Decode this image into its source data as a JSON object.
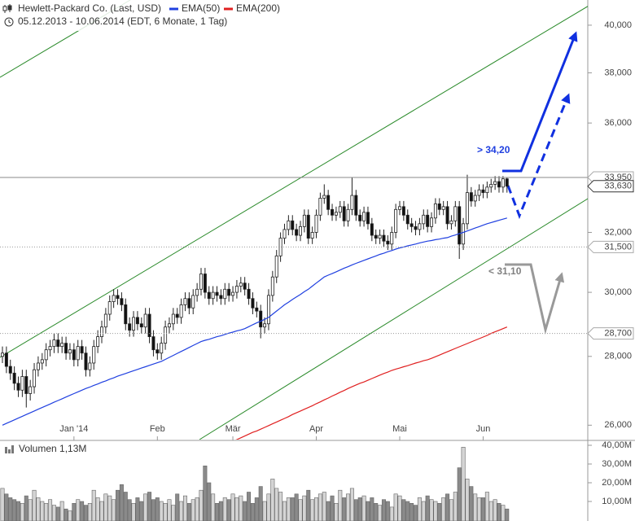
{
  "header": {
    "title": "Hewlett-Packard Co. (Last, USD)",
    "subtitle": "05.12.2013 - 10.06.2014 (EDT, 6 Monate, 1 Tag)"
  },
  "chart_data": [
    {
      "type": "candlestick",
      "categories": [
        null,
        null,
        null,
        null,
        null,
        null,
        null,
        null,
        null,
        null,
        null,
        null,
        null,
        null,
        null,
        null,
        null,
        null,
        "Jan '14",
        null,
        null,
        null,
        null,
        null,
        null,
        null,
        null,
        null,
        null,
        null,
        null,
        null,
        null,
        null,
        null,
        null,
        null,
        null,
        null,
        "Feb",
        null,
        null,
        null,
        null,
        null,
        null,
        null,
        null,
        null,
        null,
        null,
        null,
        null,
        null,
        null,
        null,
        null,
        null,
        "Mär",
        null,
        null,
        null,
        null,
        null,
        null,
        null,
        null,
        null,
        null,
        null,
        null,
        null,
        null,
        null,
        null,
        null,
        null,
        null,
        null,
        "Apr",
        null,
        null,
        null,
        null,
        null,
        null,
        null,
        null,
        null,
        null,
        null,
        null,
        null,
        null,
        null,
        null,
        null,
        null,
        null,
        null,
        "Mai",
        null,
        null,
        null,
        null,
        null,
        null,
        null,
        null,
        null,
        null,
        null,
        null,
        null,
        null,
        null,
        null,
        null,
        null,
        null,
        null,
        "Jun",
        null,
        null,
        null,
        null,
        null,
        null
      ],
      "open": [
        28.0,
        28.1,
        27.7,
        27.5,
        27.2,
        27.0,
        27.4,
        26.9,
        27.1,
        27.6,
        27.8,
        27.9,
        28.2,
        28.3,
        28.5,
        28.3,
        28.4,
        28.1,
        28.2,
        27.9,
        28.3,
        28.1,
        27.6,
        27.8,
        28.3,
        28.6,
        28.9,
        29.3,
        29.7,
        29.9,
        29.8,
        29.6,
        29.0,
        28.8,
        29.2,
        29.0,
        28.9,
        29.3,
        28.6,
        28.2,
        28.1,
        28.4,
        28.9,
        29.0,
        29.3,
        29.2,
        29.6,
        29.8,
        29.5,
        29.9,
        30.1,
        30.6,
        30.0,
        29.8,
        30.0,
        29.9,
        29.8,
        30.1,
        29.9,
        30.0,
        30.2,
        30.3,
        30.1,
        29.8,
        29.5,
        29.4,
        28.9,
        29.0,
        29.9,
        30.5,
        31.2,
        31.8,
        32.1,
        32.4,
        32.1,
        31.9,
        32.2,
        32.6,
        31.8,
        32.0,
        32.6,
        33.2,
        33.3,
        32.8,
        32.6,
        32.7,
        32.9,
        32.4,
        32.8,
        33.3,
        32.6,
        32.4,
        32.7,
        32.3,
        31.9,
        31.8,
        31.9,
        31.7,
        31.6,
        32.0,
        32.8,
        32.9,
        32.6,
        32.3,
        32.2,
        32.1,
        32.3,
        32.6,
        32.2,
        32.5,
        33.0,
        32.8,
        32.9,
        32.3,
        32.4,
        32.9,
        31.6,
        32.3,
        33.4,
        33.1,
        33.3,
        33.5,
        33.4,
        33.6,
        33.7,
        33.8,
        33.6,
        33.9
      ],
      "high": [
        28.3,
        28.3,
        27.9,
        27.7,
        27.4,
        27.6,
        27.6,
        27.3,
        27.8,
        28.0,
        28.1,
        28.4,
        28.5,
        28.7,
        28.7,
        28.6,
        28.6,
        28.4,
        28.4,
        28.5,
        28.5,
        28.3,
        28.0,
        28.5,
        28.8,
        29.1,
        29.5,
        29.9,
        30.1,
        30.1,
        30.0,
        29.8,
        29.2,
        29.4,
        29.4,
        29.2,
        29.5,
        29.5,
        28.8,
        28.4,
        28.6,
        29.1,
        29.2,
        29.5,
        29.5,
        29.8,
        30.0,
        30.0,
        30.1,
        30.3,
        30.8,
        30.8,
        30.2,
        30.2,
        30.2,
        30.1,
        30.3,
        30.3,
        30.2,
        30.4,
        30.5,
        30.5,
        30.3,
        30.0,
        29.7,
        29.6,
        29.2,
        30.1,
        30.7,
        31.4,
        32.0,
        32.3,
        32.6,
        32.6,
        32.3,
        32.4,
        32.8,
        32.8,
        32.2,
        32.8,
        33.4,
        33.7,
        33.5,
        33.0,
        32.9,
        33.1,
        33.1,
        33.0,
        33.95,
        33.5,
        32.8,
        32.9,
        32.9,
        32.5,
        32.1,
        32.1,
        32.1,
        31.9,
        32.2,
        33.0,
        33.1,
        33.1,
        32.8,
        32.5,
        32.4,
        32.5,
        32.8,
        32.8,
        32.7,
        33.2,
        33.2,
        33.1,
        33.1,
        32.6,
        33.1,
        33.1,
        32.5,
        34.05,
        33.6,
        33.5,
        33.7,
        33.7,
        33.8,
        33.9,
        34.0,
        34.0,
        34.0,
        33.95
      ],
      "low": [
        27.8,
        27.5,
        27.3,
        27.0,
        26.8,
        26.8,
        26.5,
        26.7,
        26.9,
        27.4,
        27.6,
        27.7,
        28.0,
        28.1,
        28.1,
        28.1,
        27.9,
        27.9,
        27.7,
        27.7,
        27.9,
        27.4,
        27.4,
        27.6,
        28.1,
        28.4,
        28.7,
        29.1,
        29.5,
        29.6,
        29.4,
        28.8,
        28.6,
        28.6,
        28.8,
        28.7,
        28.7,
        28.4,
        28.0,
        27.9,
        27.9,
        28.2,
        28.7,
        28.8,
        29.0,
        29.0,
        29.4,
        29.3,
        29.3,
        29.7,
        29.9,
        29.8,
        29.6,
        29.6,
        29.7,
        29.6,
        29.6,
        29.7,
        29.7,
        29.8,
        30.0,
        29.9,
        29.6,
        29.3,
        29.2,
        28.55,
        28.7,
        28.8,
        29.7,
        30.3,
        31.0,
        31.6,
        31.9,
        31.9,
        31.7,
        31.7,
        32.0,
        31.6,
        31.6,
        31.8,
        32.4,
        33.0,
        32.6,
        32.4,
        32.4,
        32.5,
        32.2,
        32.2,
        32.6,
        32.4,
        32.2,
        32.2,
        32.1,
        31.7,
        31.6,
        31.6,
        31.5,
        31.4,
        31.4,
        31.8,
        32.6,
        32.4,
        32.1,
        32.0,
        31.9,
        31.9,
        32.1,
        32.0,
        32.0,
        32.3,
        32.6,
        32.6,
        32.1,
        32.1,
        32.2,
        31.1,
        31.4,
        32.1,
        32.9,
        32.9,
        33.1,
        33.2,
        33.2,
        33.4,
        33.5,
        33.4,
        33.4,
        33.4
      ],
      "close": [
        28.1,
        27.7,
        27.5,
        27.2,
        27.0,
        27.4,
        26.9,
        27.1,
        27.6,
        27.8,
        27.9,
        28.2,
        28.3,
        28.5,
        28.3,
        28.4,
        28.1,
        28.2,
        27.9,
        28.3,
        28.1,
        27.6,
        27.8,
        28.3,
        28.6,
        28.9,
        29.3,
        29.7,
        29.9,
        29.8,
        29.6,
        29.0,
        28.8,
        29.2,
        29.0,
        28.9,
        29.3,
        28.6,
        28.2,
        28.1,
        28.4,
        28.9,
        29.0,
        29.3,
        29.2,
        29.6,
        29.8,
        29.5,
        29.9,
        30.1,
        30.6,
        30.0,
        29.8,
        30.0,
        29.9,
        29.8,
        30.1,
        29.9,
        30.0,
        30.2,
        30.3,
        30.1,
        29.8,
        29.5,
        29.4,
        28.9,
        29.0,
        29.9,
        30.5,
        31.2,
        31.8,
        32.1,
        32.4,
        32.1,
        31.9,
        32.2,
        32.6,
        31.8,
        32.0,
        32.6,
        33.2,
        33.3,
        32.8,
        32.6,
        32.7,
        32.9,
        32.4,
        32.8,
        33.3,
        32.6,
        32.4,
        32.7,
        32.3,
        31.9,
        31.8,
        31.9,
        31.7,
        31.6,
        32.0,
        32.8,
        32.9,
        32.6,
        32.3,
        32.2,
        32.1,
        32.3,
        32.6,
        32.2,
        32.5,
        33.0,
        32.8,
        32.9,
        32.3,
        32.4,
        32.9,
        31.6,
        32.3,
        33.4,
        33.1,
        33.3,
        33.5,
        33.4,
        33.6,
        33.7,
        33.8,
        33.6,
        33.9,
        33.63
      ],
      "series": [
        {
          "name": "EMA(50)",
          "color": "#2040e0",
          "values": [
            26.0,
            26.05,
            26.1,
            26.15,
            26.2,
            26.25,
            26.3,
            26.35,
            26.4,
            26.45,
            26.5,
            26.55,
            26.6,
            26.65,
            26.7,
            26.75,
            26.8,
            26.85,
            26.9,
            26.95,
            27.0,
            27.05,
            27.09,
            27.14,
            27.18,
            27.23,
            27.27,
            27.32,
            27.36,
            27.41,
            27.45,
            27.49,
            27.53,
            27.57,
            27.61,
            27.65,
            27.69,
            27.73,
            27.77,
            27.81,
            27.85,
            27.91,
            27.97,
            28.03,
            28.09,
            28.15,
            28.21,
            28.27,
            28.33,
            28.39,
            28.45,
            28.49,
            28.52,
            28.56,
            28.6,
            28.63,
            28.67,
            28.71,
            28.74,
            28.78,
            28.81,
            28.85,
            28.91,
            28.97,
            29.03,
            29.08,
            29.14,
            29.2,
            29.3,
            29.4,
            29.5,
            29.6,
            29.68,
            29.77,
            29.85,
            29.93,
            30.02,
            30.1,
            30.2,
            30.3,
            30.4,
            30.5,
            30.56,
            30.61,
            30.67,
            30.73,
            30.79,
            30.84,
            30.9,
            30.95,
            31.0,
            31.05,
            31.1,
            31.15,
            31.2,
            31.25,
            31.29,
            31.34,
            31.38,
            31.43,
            31.47,
            31.5,
            31.54,
            31.57,
            31.6,
            31.64,
            31.67,
            31.7,
            31.72,
            31.75,
            31.77,
            31.8,
            31.82,
            31.87,
            31.91,
            31.96,
            32.0,
            32.05,
            32.1,
            32.15,
            32.2,
            32.25,
            32.3,
            32.34,
            32.38,
            32.42,
            32.46,
            32.5
          ]
        },
        {
          "name": "EMA(200)",
          "color": "#e02020",
          "values": [
            null,
            null,
            null,
            null,
            null,
            null,
            null,
            null,
            null,
            null,
            null,
            null,
            null,
            null,
            null,
            null,
            null,
            null,
            null,
            null,
            null,
            null,
            null,
            null,
            null,
            null,
            null,
            null,
            null,
            null,
            null,
            null,
            null,
            null,
            null,
            null,
            null,
            null,
            null,
            null,
            null,
            null,
            null,
            null,
            null,
            null,
            null,
            null,
            null,
            null,
            null,
            null,
            null,
            null,
            null,
            null,
            null,
            null,
            25.55,
            25.6,
            25.65,
            25.7,
            25.75,
            25.8,
            25.84,
            25.89,
            25.94,
            25.99,
            26.04,
            26.09,
            26.14,
            26.19,
            26.24,
            26.3,
            26.35,
            26.4,
            26.45,
            26.5,
            26.55,
            26.61,
            26.66,
            26.72,
            26.77,
            26.83,
            26.88,
            26.94,
            26.99,
            27.05,
            27.1,
            27.15,
            27.2,
            27.24,
            27.29,
            27.34,
            27.39,
            27.44,
            27.49,
            27.53,
            27.58,
            27.62,
            27.65,
            27.69,
            27.72,
            27.76,
            27.8,
            27.83,
            27.87,
            27.9,
            27.94,
            27.99,
            28.04,
            28.09,
            28.14,
            28.19,
            28.24,
            28.29,
            28.34,
            28.39,
            28.44,
            28.49,
            28.54,
            28.59,
            28.64,
            28.7,
            28.75,
            28.8,
            28.85,
            28.9
          ]
        }
      ],
      "ylim": [
        25.6,
        41.1
      ],
      "log_scale": true,
      "yticks": [
        {
          "value": 26,
          "label": "26,000"
        },
        {
          "value": 28,
          "label": "28,000"
        },
        {
          "value": 30,
          "label": "30,000"
        },
        {
          "value": 32,
          "label": "32,000"
        },
        {
          "value": 36,
          "label": "36,000"
        },
        {
          "value": 38,
          "label": "38,000"
        },
        {
          "value": 40,
          "label": "40,000"
        }
      ],
      "levels": [
        {
          "value": 33.95,
          "label": "33,950",
          "line": "solid"
        },
        {
          "value": 33.63,
          "label": "33,630",
          "line": "none"
        },
        {
          "value": 31.5,
          "label": "31,500",
          "line": "dotted"
        },
        {
          "value": 28.7,
          "label": "28,700",
          "line": "dotted"
        }
      ],
      "annotations": [
        {
          "text": "> 34,20",
          "color": "#2040e0"
        },
        {
          "text": "< 31,10",
          "color": "#808080"
        }
      ]
    },
    {
      "type": "bar",
      "title": "Volumen  1,13M",
      "values": [
        17,
        14,
        12,
        11,
        10,
        9,
        13,
        11,
        16,
        12,
        10,
        9,
        11,
        8,
        7,
        10,
        6,
        5,
        9,
        11,
        10,
        8,
        9,
        16,
        12,
        10,
        14,
        13,
        11,
        16,
        19,
        15,
        11,
        9,
        12,
        10,
        14,
        15,
        11,
        12,
        10,
        9,
        11,
        8,
        14,
        10,
        13,
        9,
        11,
        12,
        16,
        29,
        20,
        14,
        9,
        10,
        12,
        11,
        14,
        12,
        13,
        10,
        15,
        9,
        12,
        18,
        10,
        14,
        22,
        17,
        15,
        10,
        12,
        12,
        14,
        11,
        13,
        16,
        11,
        12,
        14,
        15,
        10,
        13,
        9,
        16,
        12,
        14,
        17,
        11,
        12,
        13,
        10,
        12,
        9,
        8,
        11,
        10,
        7,
        14,
        13,
        11,
        10,
        9,
        8,
        12,
        10,
        13,
        11,
        10,
        9,
        12,
        14,
        11,
        15,
        28,
        39,
        22,
        18,
        14,
        12,
        12,
        15,
        10,
        11,
        9,
        8,
        6
      ],
      "ylim": [
        0,
        40
      ],
      "yticks": [
        {
          "value": 10,
          "label": "10,00M"
        },
        {
          "value": 20,
          "label": "20,00M"
        },
        {
          "value": 30,
          "label": "30,00M"
        },
        {
          "value": 40,
          "label": "40,00M"
        }
      ]
    }
  ]
}
